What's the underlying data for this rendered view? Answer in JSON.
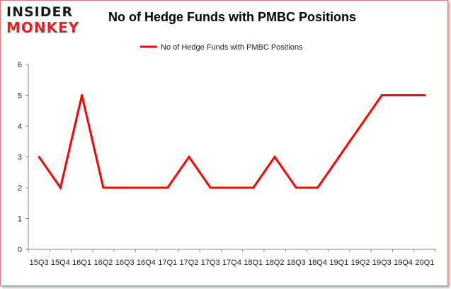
{
  "brand": {
    "line1": "INSIDER",
    "line2": "MONKEY",
    "colors": {
      "dark": "#1a1a1a",
      "red": "#e02222"
    }
  },
  "chart_data": {
    "type": "line",
    "title": "No of Hedge Funds with PMBC Positions",
    "xlabel": "",
    "ylabel": "",
    "categories": [
      "15Q3",
      "15Q4",
      "16Q1",
      "16Q2",
      "16Q3",
      "16Q4",
      "17Q1",
      "17Q2",
      "17Q3",
      "17Q4",
      "18Q1",
      "18Q2",
      "18Q3",
      "18Q4",
      "19Q1",
      "19Q2",
      "19Q3",
      "19Q4",
      "20Q1"
    ],
    "series": [
      {
        "name": "No of Hedge Funds with PMBC Positions",
        "color": "#ff0000",
        "values": [
          3,
          2,
          5,
          2,
          2,
          2,
          2,
          3,
          2,
          2,
          2,
          3,
          2,
          2,
          3,
          4,
          5,
          5,
          5
        ]
      }
    ],
    "ylim": [
      0,
      6
    ],
    "yticks": [
      0,
      1,
      2,
      3,
      4,
      5,
      6
    ],
    "legend": "top-center",
    "grid": false
  }
}
